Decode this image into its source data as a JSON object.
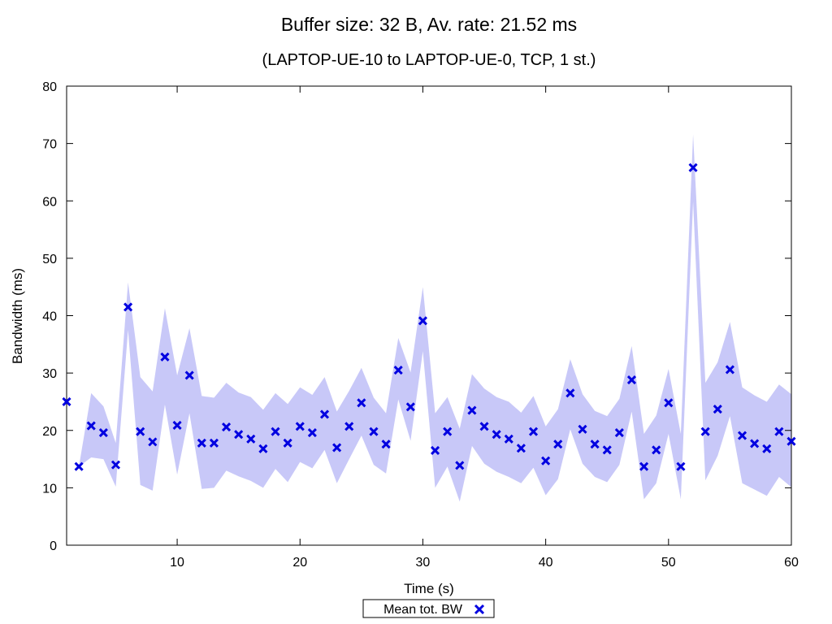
{
  "chart_data": {
    "type": "scatter",
    "title": "Buffer size: 32 B, Av. rate: 21.52 ms",
    "subtitle": "(LAPTOP-UE-10 to LAPTOP-UE-0, TCP, 1 st.)",
    "xlabel": "Time (s)",
    "ylabel": "Bandwidth (ms)",
    "xlim": [
      1,
      60
    ],
    "ylim": [
      0,
      80
    ],
    "xticks": [
      10,
      20,
      30,
      40,
      50,
      60
    ],
    "yticks": [
      0,
      10,
      20,
      30,
      40,
      50,
      60,
      70,
      80
    ],
    "grid": false,
    "legend": "bottom-center",
    "colors": {
      "marker": "#0000e0",
      "band": "#c8c8f8"
    },
    "series": [
      {
        "name": "Mean tot. BW",
        "marker": "x",
        "x": [
          1,
          2,
          3,
          4,
          5,
          6,
          7,
          8,
          9,
          10,
          11,
          12,
          13,
          14,
          15,
          16,
          17,
          18,
          19,
          20,
          21,
          22,
          23,
          24,
          25,
          26,
          27,
          28,
          29,
          30,
          31,
          32,
          33,
          34,
          35,
          36,
          37,
          38,
          39,
          40,
          41,
          42,
          43,
          44,
          45,
          46,
          47,
          48,
          49,
          50,
          51,
          52,
          53,
          54,
          55,
          56,
          57,
          58,
          59,
          60
        ],
        "y": [
          25,
          13.7,
          20.8,
          19.6,
          14,
          41.5,
          19.8,
          18,
          32.8,
          20.9,
          29.6,
          17.8,
          17.8,
          20.6,
          19.3,
          18.5,
          16.8,
          19.8,
          17.8,
          20.7,
          19.6,
          22.8,
          17,
          20.7,
          24.8,
          19.8,
          17.6,
          30.5,
          24.1,
          39.1,
          16.5,
          19.8,
          13.9,
          23.5,
          20.7,
          19.3,
          18.5,
          16.9,
          19.8,
          14.7,
          17.6,
          26.5,
          20.2,
          17.6,
          16.6,
          19.6,
          28.8,
          13.7,
          16.6,
          24.8,
          13.7,
          65.8,
          19.8,
          23.7,
          30.6,
          19.1,
          17.7,
          16.8,
          19.8,
          18.1
        ]
      }
    ],
    "band": {
      "x": [
        1,
        2,
        3,
        4,
        5,
        6,
        7,
        8,
        9,
        10,
        11,
        12,
        13,
        14,
        15,
        16,
        17,
        18,
        19,
        20,
        21,
        22,
        23,
        24,
        25,
        26,
        27,
        28,
        29,
        30,
        31,
        32,
        33,
        34,
        35,
        36,
        37,
        38,
        39,
        40,
        41,
        42,
        43,
        44,
        45,
        46,
        47,
        48,
        49,
        50,
        51,
        52,
        53,
        54,
        55,
        56,
        57,
        58,
        59,
        60
      ],
      "low": [
        25,
        13.7,
        15.3,
        15,
        10.2,
        37.5,
        10.5,
        9.5,
        24.5,
        12.3,
        23,
        9.8,
        10,
        13,
        12,
        11.2,
        10,
        13.3,
        11,
        14.5,
        13.4,
        16.6,
        10.8,
        15,
        19.1,
        14,
        12.5,
        25.4,
        18.2,
        33.8,
        10,
        13.7,
        7.6,
        17.3,
        14.2,
        12.8,
        11.9,
        10.8,
        13.5,
        8.7,
        11.5,
        20.2,
        14.2,
        11.9,
        11,
        14,
        23.3,
        8,
        10.8,
        19.4,
        8,
        59.9,
        11.3,
        15.6,
        22.5,
        10.8,
        9.7,
        8.6,
        11.9,
        10.1
      ],
      "high": [
        25,
        13.7,
        26.5,
        24.2,
        17.8,
        45.8,
        29.3,
        26.8,
        41.3,
        29.6,
        37.8,
        26,
        25.7,
        28.3,
        26.6,
        25.8,
        23.6,
        26.5,
        24.6,
        27.5,
        26.2,
        29.3,
        23.3,
        26.9,
        30.9,
        25.7,
        23,
        36.1,
        30.1,
        45,
        23,
        25.8,
        20.3,
        29.8,
        27.3,
        25.8,
        25,
        23.1,
        26,
        20.7,
        23.7,
        32.4,
        26.3,
        23.4,
        22.5,
        25.5,
        34.7,
        19.4,
        22.6,
        30.7,
        19.4,
        71.6,
        28.3,
        31.9,
        38.9,
        27.5,
        26.1,
        25,
        28,
        26.3
      ]
    }
  }
}
